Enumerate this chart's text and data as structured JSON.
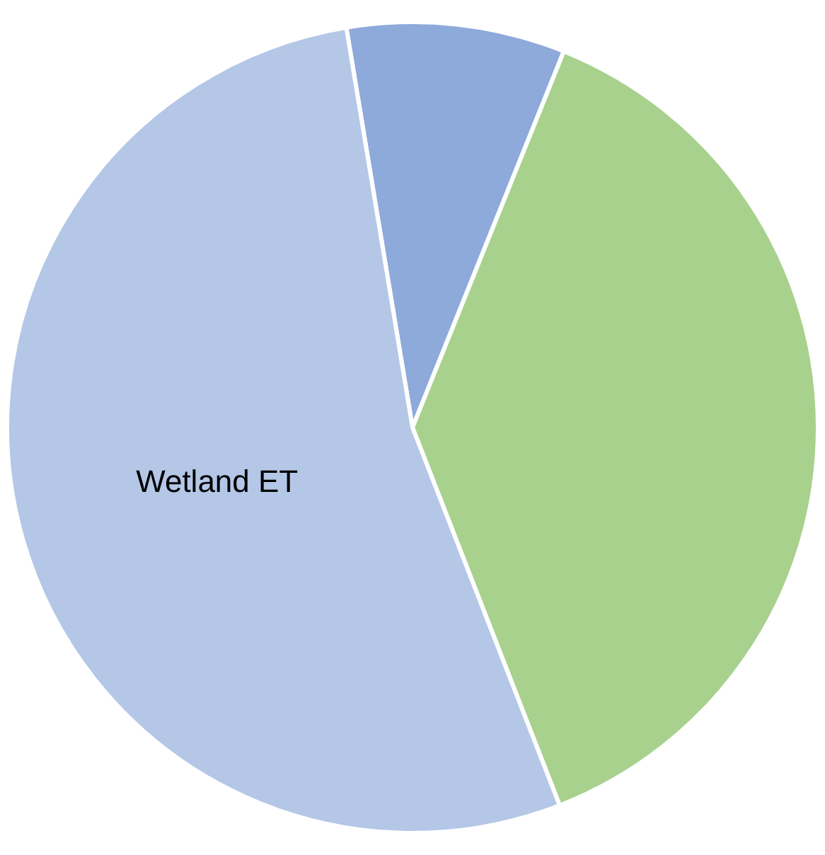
{
  "chart_data": {
    "type": "pie",
    "categories": [
      null,
      null,
      "Wetland ET"
    ],
    "values": [
      8.7,
      38,
      53.3
    ],
    "colors": [
      "#8eaadb",
      "#a9d18e",
      "#b4c7e7"
    ],
    "legend": false
  }
}
